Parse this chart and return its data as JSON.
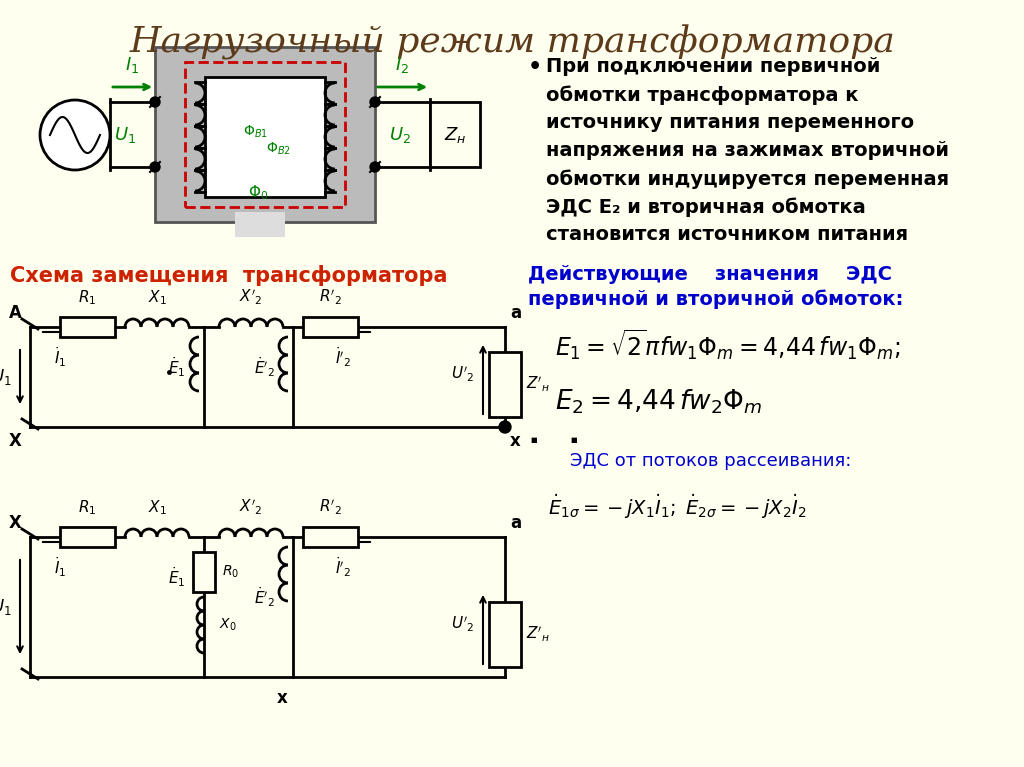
{
  "title": "Нагрузочный режим трансформатора",
  "bg_color": "#FFFFF0",
  "title_color": "#5C3A1A",
  "bullet_text_line1": "При подключении первичной",
  "bullet_text_line2": "обмотки трансформатора к",
  "bullet_text_line3": "источнику питания переменного",
  "bullet_text_line4": "напряжения на зажимах вторичной",
  "bullet_text_line5": "обмотки индуцируется переменная",
  "bullet_text_line6": "ЭДС Е₂ и вторичная обмотка",
  "bullet_text_line7": "становится источником питания",
  "left_label": "Схема замещения  трансформатора",
  "left_label_color": "#CC2200",
  "right_header_line1": "Действующие    значения    ЭДС",
  "right_header_line2": "первичной и вторичной обмоток:",
  "right_header_color": "#0000CC",
  "eds_scatter_label": "ЭДС от потоков рассеивания:",
  "eds_scatter_color": "#0000CC"
}
